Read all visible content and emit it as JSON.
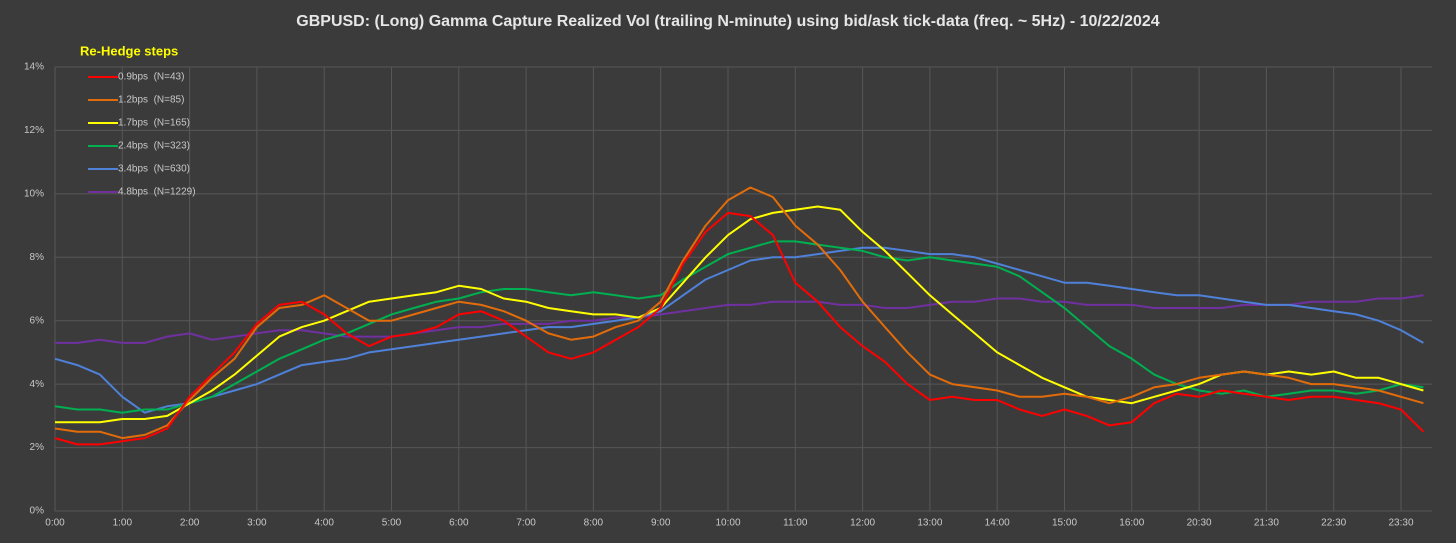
{
  "chart_data": {
    "type": "line",
    "title": "GBPUSD: (Long) Gamma Capture Realized Vol (trailing N-minute) using bid/ask tick-data (freq. ~ 5Hz) - 10/22/2024",
    "legend_title": "Re-Hedge steps",
    "legend": "top-left",
    "grid": true,
    "categories": [
      "0:00",
      null,
      null,
      "1:00",
      null,
      null,
      "2:00",
      null,
      null,
      "3:00",
      null,
      null,
      "4:00",
      null,
      null,
      "5:00",
      null,
      null,
      "6:00",
      null,
      null,
      "7:00",
      null,
      null,
      "8:00",
      null,
      null,
      "9:00",
      null,
      null,
      "10:00",
      null,
      null,
      "11:00",
      null,
      null,
      "12:00",
      null,
      null,
      "13:00",
      null,
      null,
      "14:00",
      null,
      null,
      "15:00",
      null,
      null,
      "16:00",
      null,
      null,
      "20:30",
      null,
      null,
      "21:30",
      null,
      null,
      "22:30",
      null,
      null,
      "23:30",
      null
    ],
    "ylim": [
      0,
      14
    ],
    "yticks": [
      {
        "value": 0,
        "label": "0%"
      },
      {
        "value": 2,
        "label": "2%"
      },
      {
        "value": 4,
        "label": "4%"
      },
      {
        "value": 6,
        "label": "6%"
      },
      {
        "value": 8,
        "label": "8%"
      },
      {
        "value": 10,
        "label": "10%"
      },
      {
        "value": 12,
        "label": "12%"
      },
      {
        "value": 14,
        "label": "14%"
      }
    ],
    "series": [
      {
        "name": "0.9bps  (N=43)",
        "color": "#ff0000",
        "values": [
          2.3,
          2.1,
          2.1,
          2.2,
          2.3,
          2.6,
          3.6,
          4.3,
          5.0,
          5.9,
          6.5,
          6.6,
          6.2,
          5.6,
          5.2,
          5.5,
          5.6,
          5.8,
          6.2,
          6.3,
          6.0,
          5.5,
          5.0,
          4.8,
          5.0,
          5.4,
          5.8,
          6.4,
          7.8,
          8.8,
          9.4,
          9.3,
          8.7,
          7.2,
          6.6,
          5.8,
          5.2,
          4.7,
          4.0,
          3.5,
          3.6,
          3.5,
          3.5,
          3.2,
          3.0,
          3.2,
          3.0,
          2.7,
          2.8,
          3.4,
          3.7,
          3.6,
          3.8,
          3.7,
          3.6,
          3.5,
          3.6,
          3.6,
          3.5,
          3.4,
          3.2,
          2.5
        ]
      },
      {
        "name": "1.2bps  (N=85)",
        "color": "#e36c0a",
        "values": [
          2.6,
          2.5,
          2.5,
          2.3,
          2.4,
          2.7,
          3.5,
          4.2,
          4.8,
          5.8,
          6.4,
          6.5,
          6.8,
          6.4,
          6.0,
          6.0,
          6.2,
          6.4,
          6.6,
          6.5,
          6.3,
          6.0,
          5.6,
          5.4,
          5.5,
          5.8,
          6.0,
          6.6,
          7.9,
          9.0,
          9.8,
          10.2,
          9.9,
          9.0,
          8.4,
          7.6,
          6.6,
          5.8,
          5.0,
          4.3,
          4.0,
          3.9,
          3.8,
          3.6,
          3.6,
          3.7,
          3.6,
          3.4,
          3.6,
          3.9,
          4.0,
          4.2,
          4.3,
          4.4,
          4.3,
          4.2,
          4.0,
          4.0,
          3.9,
          3.8,
          3.6,
          3.4
        ]
      },
      {
        "name": "1.7bps  (N=165)",
        "color": "#ffff00",
        "values": [
          2.8,
          2.8,
          2.8,
          2.9,
          2.9,
          3.0,
          3.4,
          3.8,
          4.3,
          4.9,
          5.5,
          5.8,
          6.0,
          6.3,
          6.6,
          6.7,
          6.8,
          6.9,
          7.1,
          7.0,
          6.7,
          6.6,
          6.4,
          6.3,
          6.2,
          6.2,
          6.1,
          6.4,
          7.2,
          8.0,
          8.7,
          9.2,
          9.4,
          9.5,
          9.6,
          9.5,
          8.8,
          8.2,
          7.5,
          6.8,
          6.2,
          5.6,
          5.0,
          4.6,
          4.2,
          3.9,
          3.6,
          3.5,
          3.4,
          3.6,
          3.8,
          4.0,
          4.3,
          4.4,
          4.3,
          4.4,
          4.3,
          4.4,
          4.2,
          4.2,
          4.0,
          3.8
        ]
      },
      {
        "name": "2.4bps  (N=323)",
        "color": "#00b050",
        "values": [
          3.3,
          3.2,
          3.2,
          3.1,
          3.2,
          3.2,
          3.4,
          3.6,
          4.0,
          4.4,
          4.8,
          5.1,
          5.4,
          5.6,
          5.9,
          6.2,
          6.4,
          6.6,
          6.7,
          6.9,
          7.0,
          7.0,
          6.9,
          6.8,
          6.9,
          6.8,
          6.7,
          6.8,
          7.3,
          7.7,
          8.1,
          8.3,
          8.5,
          8.5,
          8.4,
          8.3,
          8.2,
          8.0,
          7.9,
          8.0,
          7.9,
          7.8,
          7.7,
          7.4,
          6.9,
          6.4,
          5.8,
          5.2,
          4.8,
          4.3,
          4.0,
          3.8,
          3.7,
          3.8,
          3.6,
          3.7,
          3.8,
          3.8,
          3.7,
          3.8,
          4.0,
          3.9
        ]
      },
      {
        "name": "3.4bps  (N=630)",
        "color": "#4f81d9",
        "values": [
          4.8,
          4.6,
          4.3,
          3.6,
          3.1,
          3.3,
          3.4,
          3.6,
          3.8,
          4.0,
          4.3,
          4.6,
          4.7,
          4.8,
          5.0,
          5.1,
          5.2,
          5.3,
          5.4,
          5.5,
          5.6,
          5.7,
          5.8,
          5.8,
          5.9,
          6.0,
          6.1,
          6.3,
          6.8,
          7.3,
          7.6,
          7.9,
          8.0,
          8.0,
          8.1,
          8.2,
          8.3,
          8.3,
          8.2,
          8.1,
          8.1,
          8.0,
          7.8,
          7.6,
          7.4,
          7.2,
          7.2,
          7.1,
          7.0,
          6.9,
          6.8,
          6.8,
          6.7,
          6.6,
          6.5,
          6.5,
          6.4,
          6.3,
          6.2,
          6.0,
          5.7,
          5.3
        ]
      },
      {
        "name": "4.8bps  (N=1229)",
        "color": "#7030a0",
        "values": [
          5.3,
          5.3,
          5.4,
          5.3,
          5.3,
          5.5,
          5.6,
          5.4,
          5.5,
          5.6,
          5.7,
          5.7,
          5.6,
          5.5,
          5.5,
          5.5,
          5.6,
          5.7,
          5.8,
          5.8,
          5.9,
          5.9,
          5.9,
          6.0,
          6.0,
          6.1,
          6.1,
          6.2,
          6.3,
          6.4,
          6.5,
          6.5,
          6.6,
          6.6,
          6.6,
          6.5,
          6.5,
          6.4,
          6.4,
          6.5,
          6.6,
          6.6,
          6.7,
          6.7,
          6.6,
          6.6,
          6.5,
          6.5,
          6.5,
          6.4,
          6.4,
          6.4,
          6.4,
          6.5,
          6.5,
          6.5,
          6.6,
          6.6,
          6.6,
          6.7,
          6.7,
          6.8
        ]
      }
    ]
  }
}
